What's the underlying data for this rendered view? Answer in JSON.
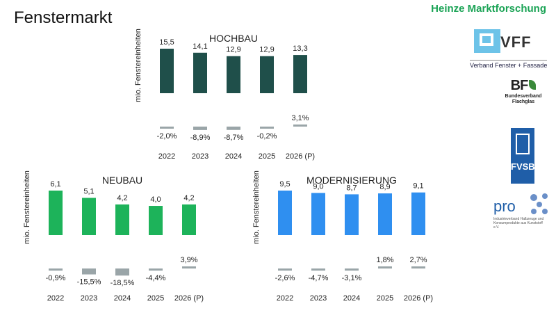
{
  "page_title": "Fenstermarkt",
  "brand": {
    "name": "Heinze Marktforschung",
    "color": "#1aa355"
  },
  "logos": {
    "vff": {
      "name": "VFF",
      "subtitle": "Verband Fenster + Fassade"
    },
    "bf": {
      "name": "BF",
      "subtitle_line1": "Bundesverband",
      "subtitle_line2": "Flachglas"
    },
    "fvsb": {
      "name": "FVSB"
    },
    "pro": {
      "name": "pro",
      "subtitle": "Industrieverband Halbzeuge und Konsumprodukte aus Kunststoff e.V."
    }
  },
  "chart_data": [
    {
      "id": "hochbau",
      "type": "bar",
      "title": "HOCHBAU",
      "ylabel": "mio. Fenstereinheiten",
      "categories": [
        "2022",
        "2023",
        "2024",
        "2025",
        "2026 (P)"
      ],
      "values": [
        15.5,
        14.1,
        12.9,
        12.9,
        13.3
      ],
      "value_labels": [
        "15,5",
        "14,1",
        "12,9",
        "12,9",
        "13,3"
      ],
      "changes": [
        -2.0,
        -8.9,
        -8.7,
        -0.2,
        3.1
      ],
      "change_labels": [
        "-2,0%",
        "-8,9%",
        "-8,7%",
        "-0,2%",
        "3,1%"
      ],
      "bar_color": "#1f4f4a",
      "change_color": "#9aa5a8"
    },
    {
      "id": "neubau",
      "type": "bar",
      "title": "NEUBAU",
      "ylabel": "mio. Fenstereinheiten",
      "categories": [
        "2022",
        "2023",
        "2024",
        "2025",
        "2026 (P)"
      ],
      "values": [
        6.1,
        5.1,
        4.2,
        4.0,
        4.2
      ],
      "value_labels": [
        "6,1",
        "5,1",
        "4,2",
        "4,0",
        "4,2"
      ],
      "changes": [
        -0.9,
        -15.5,
        -18.5,
        -4.4,
        3.9
      ],
      "change_labels": [
        "-0,9%",
        "-15,5%",
        "-18,5%",
        "-4,4%",
        "3,9%"
      ],
      "bar_color": "#1db35a",
      "change_color": "#9aa5a8"
    },
    {
      "id": "modernisierung",
      "type": "bar",
      "title": "MODERNISIERUNG",
      "ylabel": "mio. Fenstereinheiten",
      "categories": [
        "2022",
        "2023",
        "2024",
        "2025",
        "2026 (P)"
      ],
      "values": [
        9.5,
        9.0,
        8.7,
        8.9,
        9.1
      ],
      "value_labels": [
        "9,5",
        "9,0",
        "8,7",
        "8,9",
        "9,1"
      ],
      "changes": [
        -2.6,
        -4.7,
        -3.1,
        1.8,
        2.7
      ],
      "change_labels": [
        "-2,6%",
        "-4,7%",
        "-3,1%",
        "1,8%",
        "2,7%"
      ],
      "bar_color": "#2f8ff0",
      "change_color": "#9aa5a8"
    }
  ]
}
